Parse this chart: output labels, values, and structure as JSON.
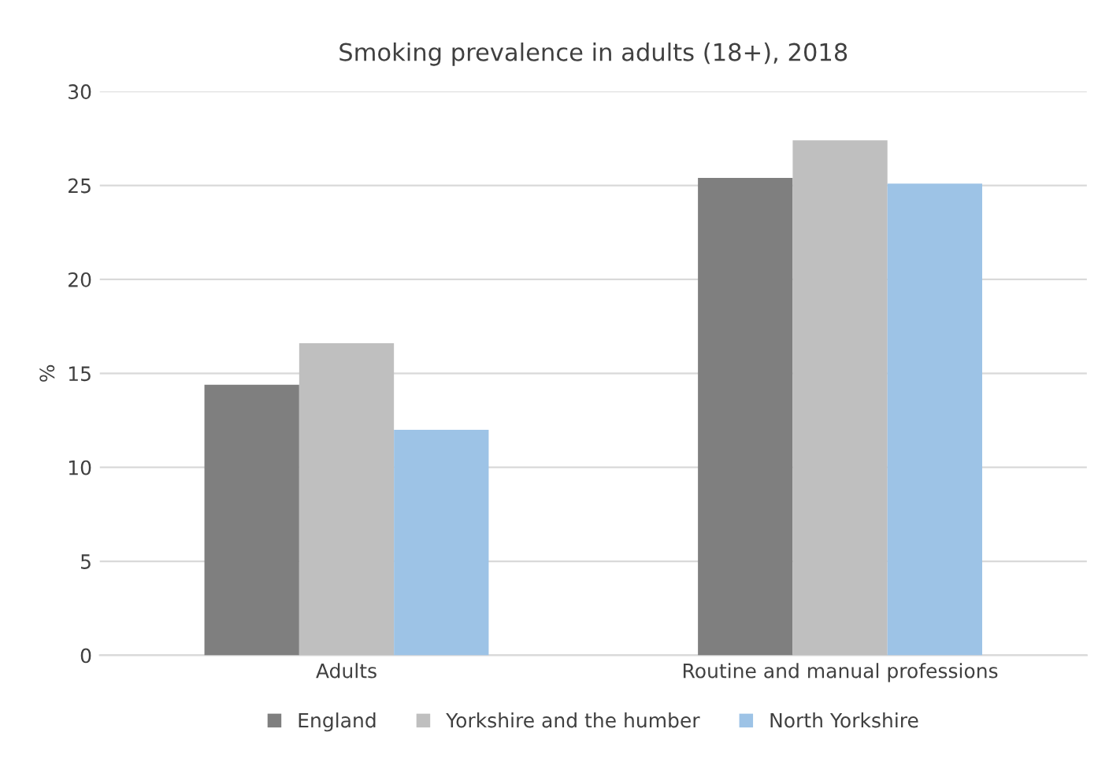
{
  "chart_data": {
    "type": "bar",
    "title": "Smoking prevalence in adults (18+), 2018",
    "ylabel": "%",
    "categories": [
      "Adults",
      "Routine and manual professions"
    ],
    "series": [
      {
        "name": "England",
        "color": "#7f7f7f",
        "values": [
          14.4,
          25.4
        ]
      },
      {
        "name": "Yorkshire and the humber",
        "color": "#bfbfbf",
        "values": [
          16.6,
          27.4
        ]
      },
      {
        "name": "North Yorkshire",
        "color": "#9dc3e6",
        "values": [
          12.0,
          25.1
        ]
      }
    ],
    "ylim": [
      0,
      30
    ],
    "yticks": [
      0,
      5,
      10,
      15,
      20,
      25,
      30
    ],
    "grid": "y",
    "legend": "bottom"
  }
}
